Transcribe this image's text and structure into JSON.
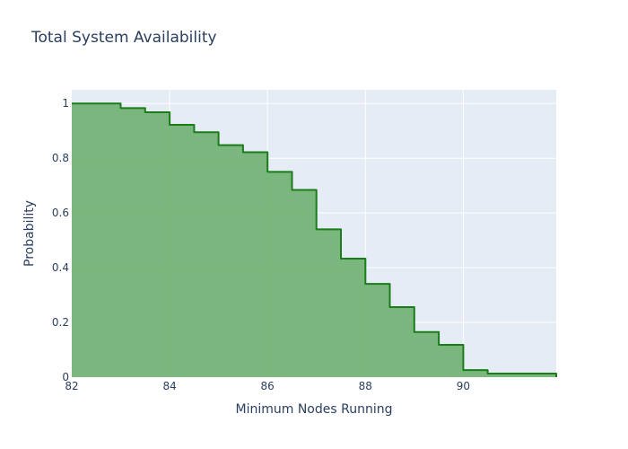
{
  "chart_data": {
    "type": "area",
    "title": "Total System Availability",
    "xlabel": "Minimum Nodes Running",
    "ylabel": "Probability",
    "xlim": [
      82,
      91.9
    ],
    "ylim": [
      0,
      1.05
    ],
    "x_ticks": [
      82,
      84,
      86,
      88,
      90
    ],
    "y_ticks": [
      0,
      0.2,
      0.4,
      0.6,
      0.8,
      1
    ],
    "y_tick_labels": [
      "0",
      "0.2",
      "0.4",
      "0.6",
      "0.8",
      "1"
    ],
    "grid": true,
    "line_shape": "hv",
    "series": [
      {
        "x": [
          82,
          82.5,
          83,
          83.5,
          84,
          84.5,
          85,
          85.5,
          86,
          86.5,
          87,
          87.5,
          88,
          88.5,
          89,
          89.5,
          90,
          90.5,
          91,
          91.5,
          91.9
        ],
        "values": [
          1.0,
          1.0,
          0.983,
          0.968,
          0.922,
          0.895,
          0.848,
          0.822,
          0.75,
          0.684,
          0.54,
          0.433,
          0.341,
          0.256,
          0.165,
          0.118,
          0.026,
          0.013,
          0.013,
          0.013,
          0.0
        ],
        "color": "#1a7d1a",
        "fill_color": "#74b376"
      }
    ]
  }
}
